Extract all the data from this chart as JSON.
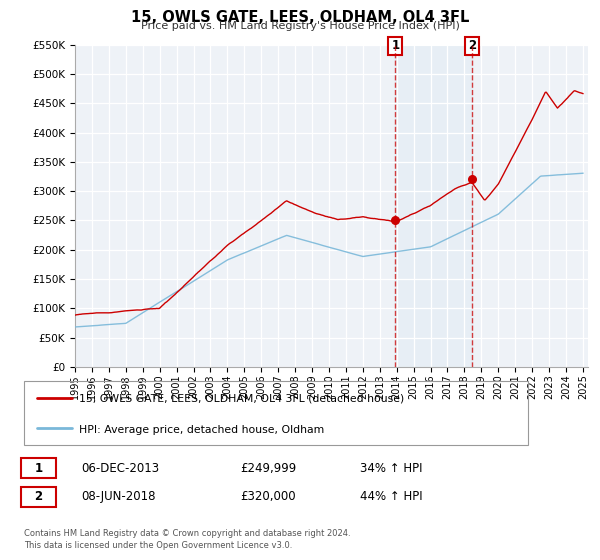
{
  "title": "15, OWLS GATE, LEES, OLDHAM, OL4 3FL",
  "subtitle": "Price paid vs. HM Land Registry's House Price Index (HPI)",
  "ylim": [
    0,
    550000
  ],
  "xlim_start": 1995.0,
  "xlim_end": 2025.3,
  "yticks": [
    0,
    50000,
    100000,
    150000,
    200000,
    250000,
    300000,
    350000,
    400000,
    450000,
    500000,
    550000
  ],
  "ytick_labels": [
    "£0",
    "£50K",
    "£100K",
    "£150K",
    "£200K",
    "£250K",
    "£300K",
    "£350K",
    "£400K",
    "£450K",
    "£500K",
    "£550K"
  ],
  "background_color": "#ffffff",
  "plot_bg_color": "#eef2f7",
  "grid_color": "#ffffff",
  "hpi_color": "#7ab8d9",
  "price_color": "#cc0000",
  "marker1_x": 2013.92,
  "marker1_y": 249999,
  "marker2_x": 2018.44,
  "marker2_y": 320000,
  "vline1_x": 2013.92,
  "vline2_x": 2018.44,
  "legend_label1": "15, OWLS GATE, LEES, OLDHAM, OL4 3FL (detached house)",
  "legend_label2": "HPI: Average price, detached house, Oldham",
  "annotation1_num": "1",
  "annotation1_date": "06-DEC-2013",
  "annotation1_price": "£249,999",
  "annotation1_hpi": "34% ↑ HPI",
  "annotation2_num": "2",
  "annotation2_date": "08-JUN-2018",
  "annotation2_price": "£320,000",
  "annotation2_hpi": "44% ↑ HPI",
  "footer": "Contains HM Land Registry data © Crown copyright and database right 2024.\nThis data is licensed under the Open Government Licence v3.0."
}
